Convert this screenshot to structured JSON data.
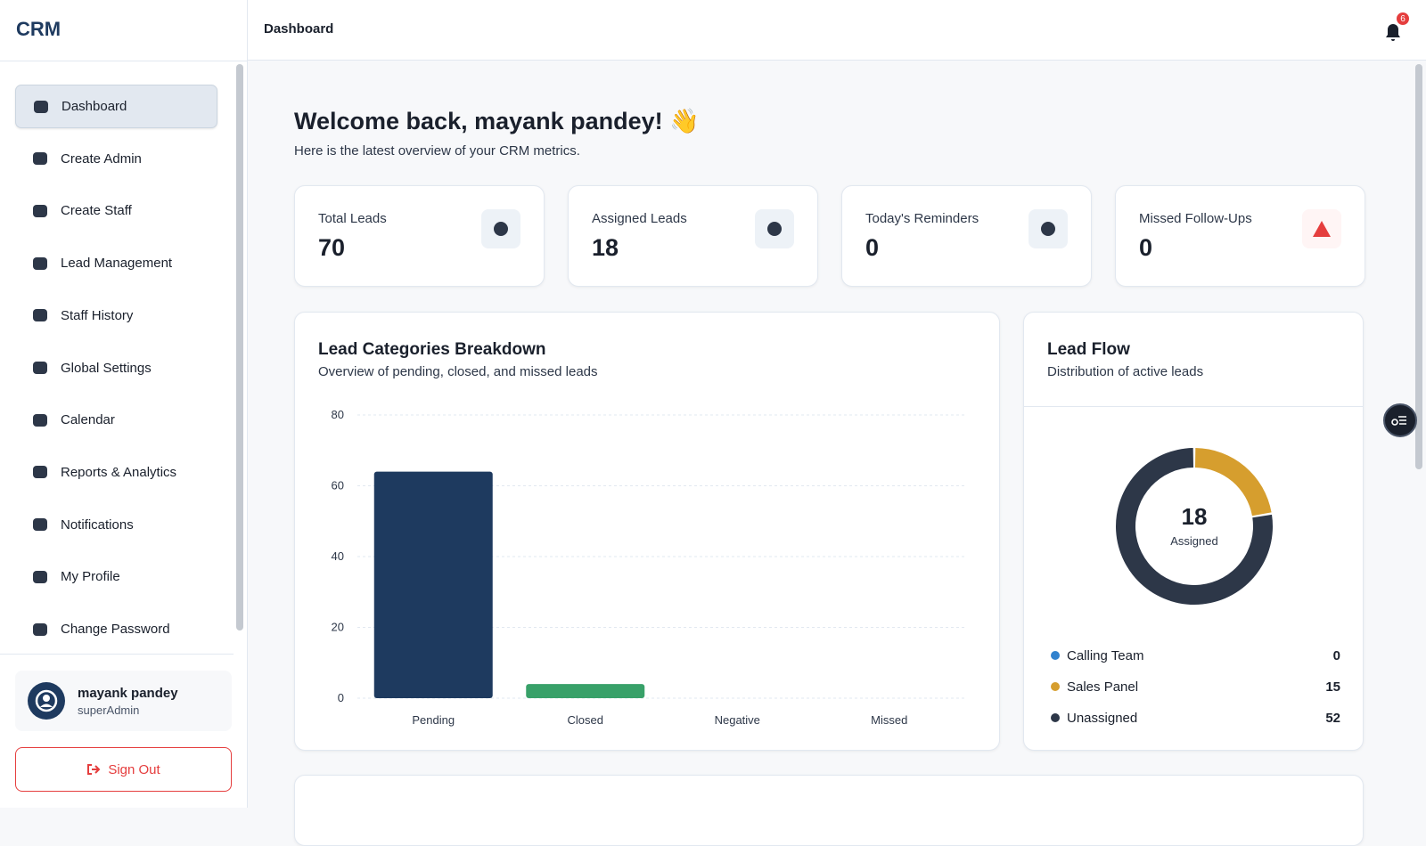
{
  "sidebar": {
    "brand": "CRM",
    "nav": [
      "Dashboard",
      "Create Admin",
      "Create Staff",
      "Lead Management",
      "Staff History",
      "Global Settings",
      "Calendar",
      "Reports & Analytics",
      "Notifications",
      "My Profile",
      "Change Password"
    ],
    "user": {
      "name": "mayank pandey",
      "role": "superAdmin"
    },
    "sign_out": "Sign Out"
  },
  "header": {
    "title": "Dashboard",
    "notification_count": 6
  },
  "welcome": {
    "title": "Welcome back, mayank pandey! 👋",
    "subtitle": "Here is the latest overview of your CRM metrics."
  },
  "stats": [
    {
      "label": "Total Leads",
      "value": 70
    },
    {
      "label": "Assigned Leads",
      "value": 18
    },
    {
      "label": "Today's Reminders",
      "value": 0
    },
    {
      "label": "Missed Follow-Ups",
      "value": 0
    }
  ],
  "chart_data": [
    {
      "type": "bar",
      "title": "Lead Categories Breakdown",
      "subtitle": "Overview of pending, closed, and missed leads",
      "categories": [
        "Pending",
        "Closed",
        "Negative",
        "Missed"
      ],
      "values": [
        64,
        4,
        0,
        0
      ],
      "colors": [
        "#1e3a5f",
        "#38a169",
        "#718096",
        "#e53e3e"
      ],
      "ylim": [
        0,
        80
      ],
      "yticks": [
        0,
        20,
        40,
        60,
        80
      ],
      "grid": true
    },
    {
      "type": "donut",
      "title": "Lead Flow",
      "subtitle": "Distribution of active leads",
      "center_value": 18,
      "center_label": "Assigned",
      "categories": [
        "Calling Team",
        "Sales Panel",
        "Unassigned"
      ],
      "values": [
        0,
        15,
        52
      ],
      "colors": [
        "#3182ce",
        "#d69e2e",
        "#2d3748"
      ]
    }
  ]
}
